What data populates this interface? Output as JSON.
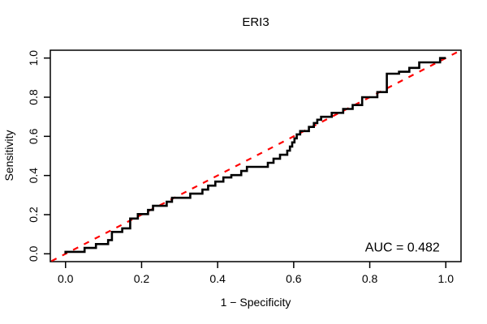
{
  "chart_data": {
    "type": "line",
    "subtype": "roc-step-curve",
    "title": "ERI3",
    "xlabel": "1 − Specificity",
    "ylabel": "Sensitivity",
    "xlim": [
      0,
      1
    ],
    "ylim": [
      0,
      1
    ],
    "grid": false,
    "legend": null,
    "x_ticks": [
      0.0,
      0.2,
      0.4,
      0.6,
      0.8,
      1.0
    ],
    "y_ticks": [
      0.0,
      0.2,
      0.4,
      0.6,
      0.8,
      1.0
    ],
    "x_tick_labels": [
      "0.0",
      "0.2",
      "0.4",
      "0.6",
      "0.8",
      "1.0"
    ],
    "y_tick_labels": [
      "0.0",
      "0.2",
      "0.4",
      "0.6",
      "0.8",
      "1.0"
    ],
    "auc": 0.482,
    "annotation": {
      "text": "AUC = 0.482",
      "x": 0.886,
      "y": 0.012
    },
    "colors": {
      "curve": "#000000",
      "diagonal": "#FF0000",
      "axis": "#000000",
      "background": "#FFFFFF"
    },
    "series": [
      {
        "name": "ROC curve",
        "style": "step",
        "color": "#000000",
        "width": 2.6,
        "dash": null,
        "points": [
          [
            0.0,
            0.0
          ],
          [
            0.0,
            0.01
          ],
          [
            0.05,
            0.01
          ],
          [
            0.05,
            0.03
          ],
          [
            0.08,
            0.03
          ],
          [
            0.08,
            0.05
          ],
          [
            0.112,
            0.05
          ],
          [
            0.112,
            0.07
          ],
          [
            0.122,
            0.07
          ],
          [
            0.122,
            0.112
          ],
          [
            0.149,
            0.112
          ],
          [
            0.149,
            0.13
          ],
          [
            0.17,
            0.13
          ],
          [
            0.17,
            0.18
          ],
          [
            0.19,
            0.18
          ],
          [
            0.19,
            0.203
          ],
          [
            0.217,
            0.203
          ],
          [
            0.217,
            0.224
          ],
          [
            0.23,
            0.224
          ],
          [
            0.23,
            0.245
          ],
          [
            0.266,
            0.245
          ],
          [
            0.266,
            0.266
          ],
          [
            0.28,
            0.266
          ],
          [
            0.28,
            0.286
          ],
          [
            0.328,
            0.286
          ],
          [
            0.328,
            0.307
          ],
          [
            0.36,
            0.307
          ],
          [
            0.36,
            0.328
          ],
          [
            0.375,
            0.328
          ],
          [
            0.375,
            0.348
          ],
          [
            0.394,
            0.348
          ],
          [
            0.394,
            0.369
          ],
          [
            0.415,
            0.369
          ],
          [
            0.415,
            0.39
          ],
          [
            0.436,
            0.39
          ],
          [
            0.436,
            0.402
          ],
          [
            0.462,
            0.402
          ],
          [
            0.462,
            0.423
          ],
          [
            0.477,
            0.423
          ],
          [
            0.477,
            0.444
          ],
          [
            0.532,
            0.444
          ],
          [
            0.532,
            0.465
          ],
          [
            0.547,
            0.465
          ],
          [
            0.547,
            0.486
          ],
          [
            0.564,
            0.486
          ],
          [
            0.564,
            0.506
          ],
          [
            0.583,
            0.506
          ],
          [
            0.583,
            0.527
          ],
          [
            0.59,
            0.527
          ],
          [
            0.59,
            0.548
          ],
          [
            0.596,
            0.548
          ],
          [
            0.596,
            0.569
          ],
          [
            0.602,
            0.569
          ],
          [
            0.602,
            0.59
          ],
          [
            0.608,
            0.59
          ],
          [
            0.608,
            0.61
          ],
          [
            0.617,
            0.61
          ],
          [
            0.617,
            0.627
          ],
          [
            0.64,
            0.627
          ],
          [
            0.64,
            0.648
          ],
          [
            0.653,
            0.648
          ],
          [
            0.653,
            0.668
          ],
          [
            0.662,
            0.668
          ],
          [
            0.662,
            0.685
          ],
          [
            0.672,
            0.685
          ],
          [
            0.672,
            0.7
          ],
          [
            0.7,
            0.7
          ],
          [
            0.7,
            0.72
          ],
          [
            0.73,
            0.72
          ],
          [
            0.73,
            0.74
          ],
          [
            0.755,
            0.74
          ],
          [
            0.755,
            0.76
          ],
          [
            0.78,
            0.76
          ],
          [
            0.78,
            0.8
          ],
          [
            0.82,
            0.8
          ],
          [
            0.82,
            0.826
          ],
          [
            0.845,
            0.826
          ],
          [
            0.845,
            0.92
          ],
          [
            0.877,
            0.92
          ],
          [
            0.877,
            0.93
          ],
          [
            0.904,
            0.93
          ],
          [
            0.904,
            0.95
          ],
          [
            0.93,
            0.95
          ],
          [
            0.93,
            0.978
          ],
          [
            0.985,
            0.978
          ],
          [
            0.985,
            1.0
          ],
          [
            1.0,
            1.0
          ]
        ]
      },
      {
        "name": "Chance diagonal",
        "style": "line",
        "color": "#FF0000",
        "width": 2.2,
        "dash": "7,8",
        "points": [
          [
            -0.037,
            -0.037
          ],
          [
            1.042,
            1.042
          ]
        ]
      }
    ]
  }
}
